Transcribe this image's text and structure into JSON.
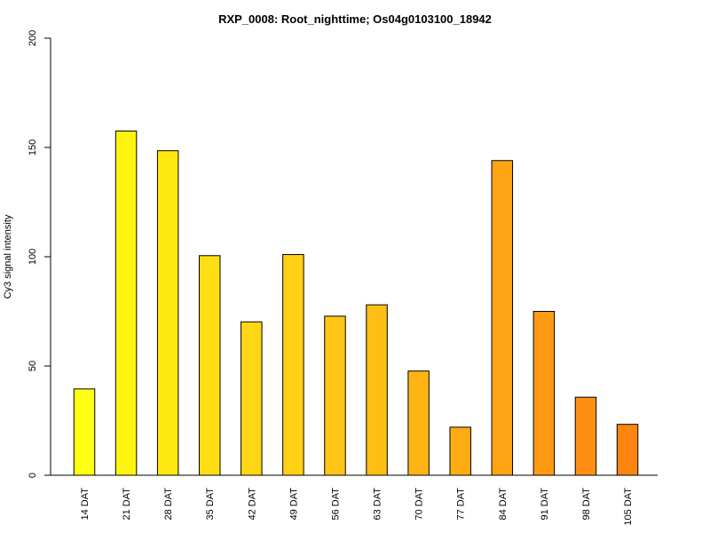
{
  "chart_data": {
    "type": "bar",
    "title": "RXP_0008: Root_nighttime; Os04g0103100_18942",
    "ylabel": "Cy3 signal intensity",
    "xlabel": "",
    "ylim": [
      0,
      200
    ],
    "yticks": [
      0,
      50,
      100,
      150,
      200
    ],
    "categories": [
      "14 DAT",
      "21 DAT",
      "28 DAT",
      "35 DAT",
      "42 DAT",
      "49 DAT",
      "56 DAT",
      "63 DAT",
      "70 DAT",
      "77 DAT",
      "84 DAT",
      "91 DAT",
      "98 DAT",
      "105 DAT"
    ],
    "values": [
      39.5,
      157.5,
      148.5,
      100.5,
      70.2,
      101,
      72.8,
      78,
      47.7,
      22,
      144,
      75,
      35.7,
      23.3
    ],
    "colors": [
      "#ffff14",
      "#fff310",
      "#ffe80f",
      "#ffdf12",
      "#ffd714",
      "#ffd014",
      "#ffc514",
      "#ffbe14",
      "#ffb414",
      "#ffac14",
      "#ffa414",
      "#ff9a14",
      "#ff8f14",
      "#ff8510"
    ],
    "grid": false
  }
}
